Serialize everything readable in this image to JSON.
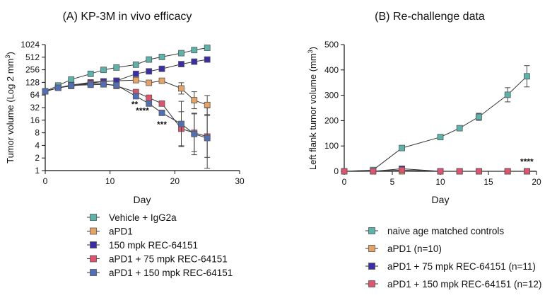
{
  "chart_data": [
    {
      "id": "A",
      "type": "line",
      "title": "(A) KP-3M in vivo efficacy",
      "xlabel": "Day",
      "ylabel": "Tumor volume (Log 2 mm³)",
      "ylabel_main": "Tumor volume (Log 2 mm",
      "ylabel_sup": "3",
      "ylabel_tail": ")",
      "xscale": "linear",
      "yscale": "log2",
      "xlim": [
        0,
        30
      ],
      "ylim": [
        1,
        1024
      ],
      "xticks": [
        0,
        10,
        20,
        30
      ],
      "yticks": [
        1,
        2,
        4,
        8,
        16,
        32,
        64,
        128,
        256,
        512,
        1024
      ],
      "legend_position": "below",
      "series": [
        {
          "name": "Vehicle + IgG2a",
          "color": "#5ab4ac",
          "x": [
            0,
            2,
            4,
            7,
            9,
            11,
            14,
            16,
            18,
            21,
            23,
            25
          ],
          "y": [
            78,
            108,
            150,
            205,
            255,
            290,
            340,
            450,
            520,
            640,
            760,
            860
          ],
          "err": [
            0,
            0,
            0,
            0,
            0,
            0,
            0,
            0,
            0,
            0,
            0,
            0
          ]
        },
        {
          "name": "aPD1",
          "color": "#e8a264",
          "x": [
            0,
            2,
            4,
            7,
            9,
            11,
            14,
            16,
            18,
            21,
            23,
            25
          ],
          "y": [
            78,
            95,
            110,
            122,
            135,
            140,
            145,
            125,
            140,
            92,
            48,
            37
          ],
          "err": [
            0,
            0,
            0,
            0,
            0,
            0,
            0,
            0,
            0,
            0.3,
            0.45,
            0.5
          ]
        },
        {
          "name": "150 mpk REC-64151",
          "color": "#3a2da6",
          "x": [
            0,
            2,
            4,
            7,
            9,
            11,
            14,
            16,
            18,
            21,
            23,
            25
          ],
          "y": [
            78,
            95,
            110,
            128,
            135,
            140,
            205,
            235,
            270,
            350,
            400,
            450
          ],
          "err": [
            0,
            0,
            0,
            0,
            0,
            0,
            0,
            0,
            0,
            0,
            0,
            0
          ]
        },
        {
          "name": "aPD1 + 75 mpk REC-64151",
          "color": "#e0526e",
          "x": [
            0,
            2,
            4,
            7,
            9,
            11,
            14,
            16,
            18,
            21,
            23,
            25
          ],
          "y": [
            78,
            95,
            105,
            120,
            120,
            105,
            75,
            55,
            40,
            10,
            8,
            6.5
          ],
          "err": [
            0,
            0,
            0,
            0,
            0,
            0,
            0,
            0,
            0,
            0.9,
            1.0,
            1.1
          ]
        },
        {
          "name": "aPD1 + 150 mpk REC-64151",
          "color": "#4f6fb7",
          "x": [
            0,
            2,
            4,
            7,
            9,
            11,
            14,
            16,
            18,
            21,
            23,
            25
          ],
          "y": [
            78,
            95,
            108,
            112,
            115,
            110,
            60,
            40,
            24,
            13,
            7.5,
            6
          ],
          "err": [
            0,
            0,
            0,
            0,
            0,
            0,
            0,
            0,
            0,
            1.2,
            1.1,
            1.6
          ]
        }
      ],
      "annotations": [
        {
          "text": "**",
          "x": 13.8,
          "y": 38
        },
        {
          "text": "****",
          "x": 15,
          "y": 27
        },
        {
          "text": "***",
          "x": 18,
          "y": 12.5
        }
      ]
    },
    {
      "id": "B",
      "type": "line",
      "title": "(B) Re-challenge data",
      "xlabel": "Day",
      "ylabel": "Left flank tumor volume (mm³)",
      "ylabel_main": "Left flank tumor volume (mm",
      "ylabel_sup": "3",
      "ylabel_tail": ")",
      "xscale": "linear",
      "yscale": "linear",
      "xlim": [
        0,
        20
      ],
      "ylim": [
        0,
        500
      ],
      "xticks": [
        0,
        5,
        10,
        15,
        20
      ],
      "yticks": [
        0,
        100,
        200,
        300,
        400,
        500
      ],
      "legend_position": "below",
      "series": [
        {
          "name": "naive age matched controls",
          "color": "#5ab4ac",
          "x": [
            0,
            3,
            6,
            10,
            12,
            14,
            17,
            19
          ],
          "y": [
            0,
            5,
            92,
            135,
            170,
            215,
            302,
            375
          ],
          "err": [
            0,
            0,
            0,
            8,
            0,
            14,
            28,
            42
          ]
        },
        {
          "name": "aPD1 (n=10)",
          "color": "#e8a264",
          "x": [
            0,
            3,
            6,
            10,
            12,
            14,
            17,
            19
          ],
          "y": [
            0,
            0,
            0,
            0,
            0,
            0,
            0,
            0
          ],
          "err": [
            0,
            0,
            0,
            0,
            0,
            0,
            0,
            0
          ]
        },
        {
          "name": "aPD1 + 75 mpk REC-64151 (n=11)",
          "color": "#3a2da6",
          "x": [
            0,
            3,
            6,
            10,
            12,
            14,
            17,
            19
          ],
          "y": [
            0,
            0,
            10,
            0,
            0,
            0,
            0,
            0
          ],
          "err": [
            0,
            0,
            0,
            0,
            0,
            0,
            0,
            0
          ]
        },
        {
          "name": "aPD1 + 150 mpk REC-64151 (n=12)",
          "color": "#e0526e",
          "x": [
            0,
            3,
            6,
            10,
            12,
            14,
            17,
            19
          ],
          "y": [
            0,
            0,
            5,
            0,
            0,
            0,
            0,
            0
          ],
          "err": [
            0,
            0,
            0,
            0,
            0,
            0,
            0,
            0
          ]
        }
      ],
      "annotations": [
        {
          "text": "****",
          "x": 19,
          "y": 38
        }
      ]
    }
  ]
}
